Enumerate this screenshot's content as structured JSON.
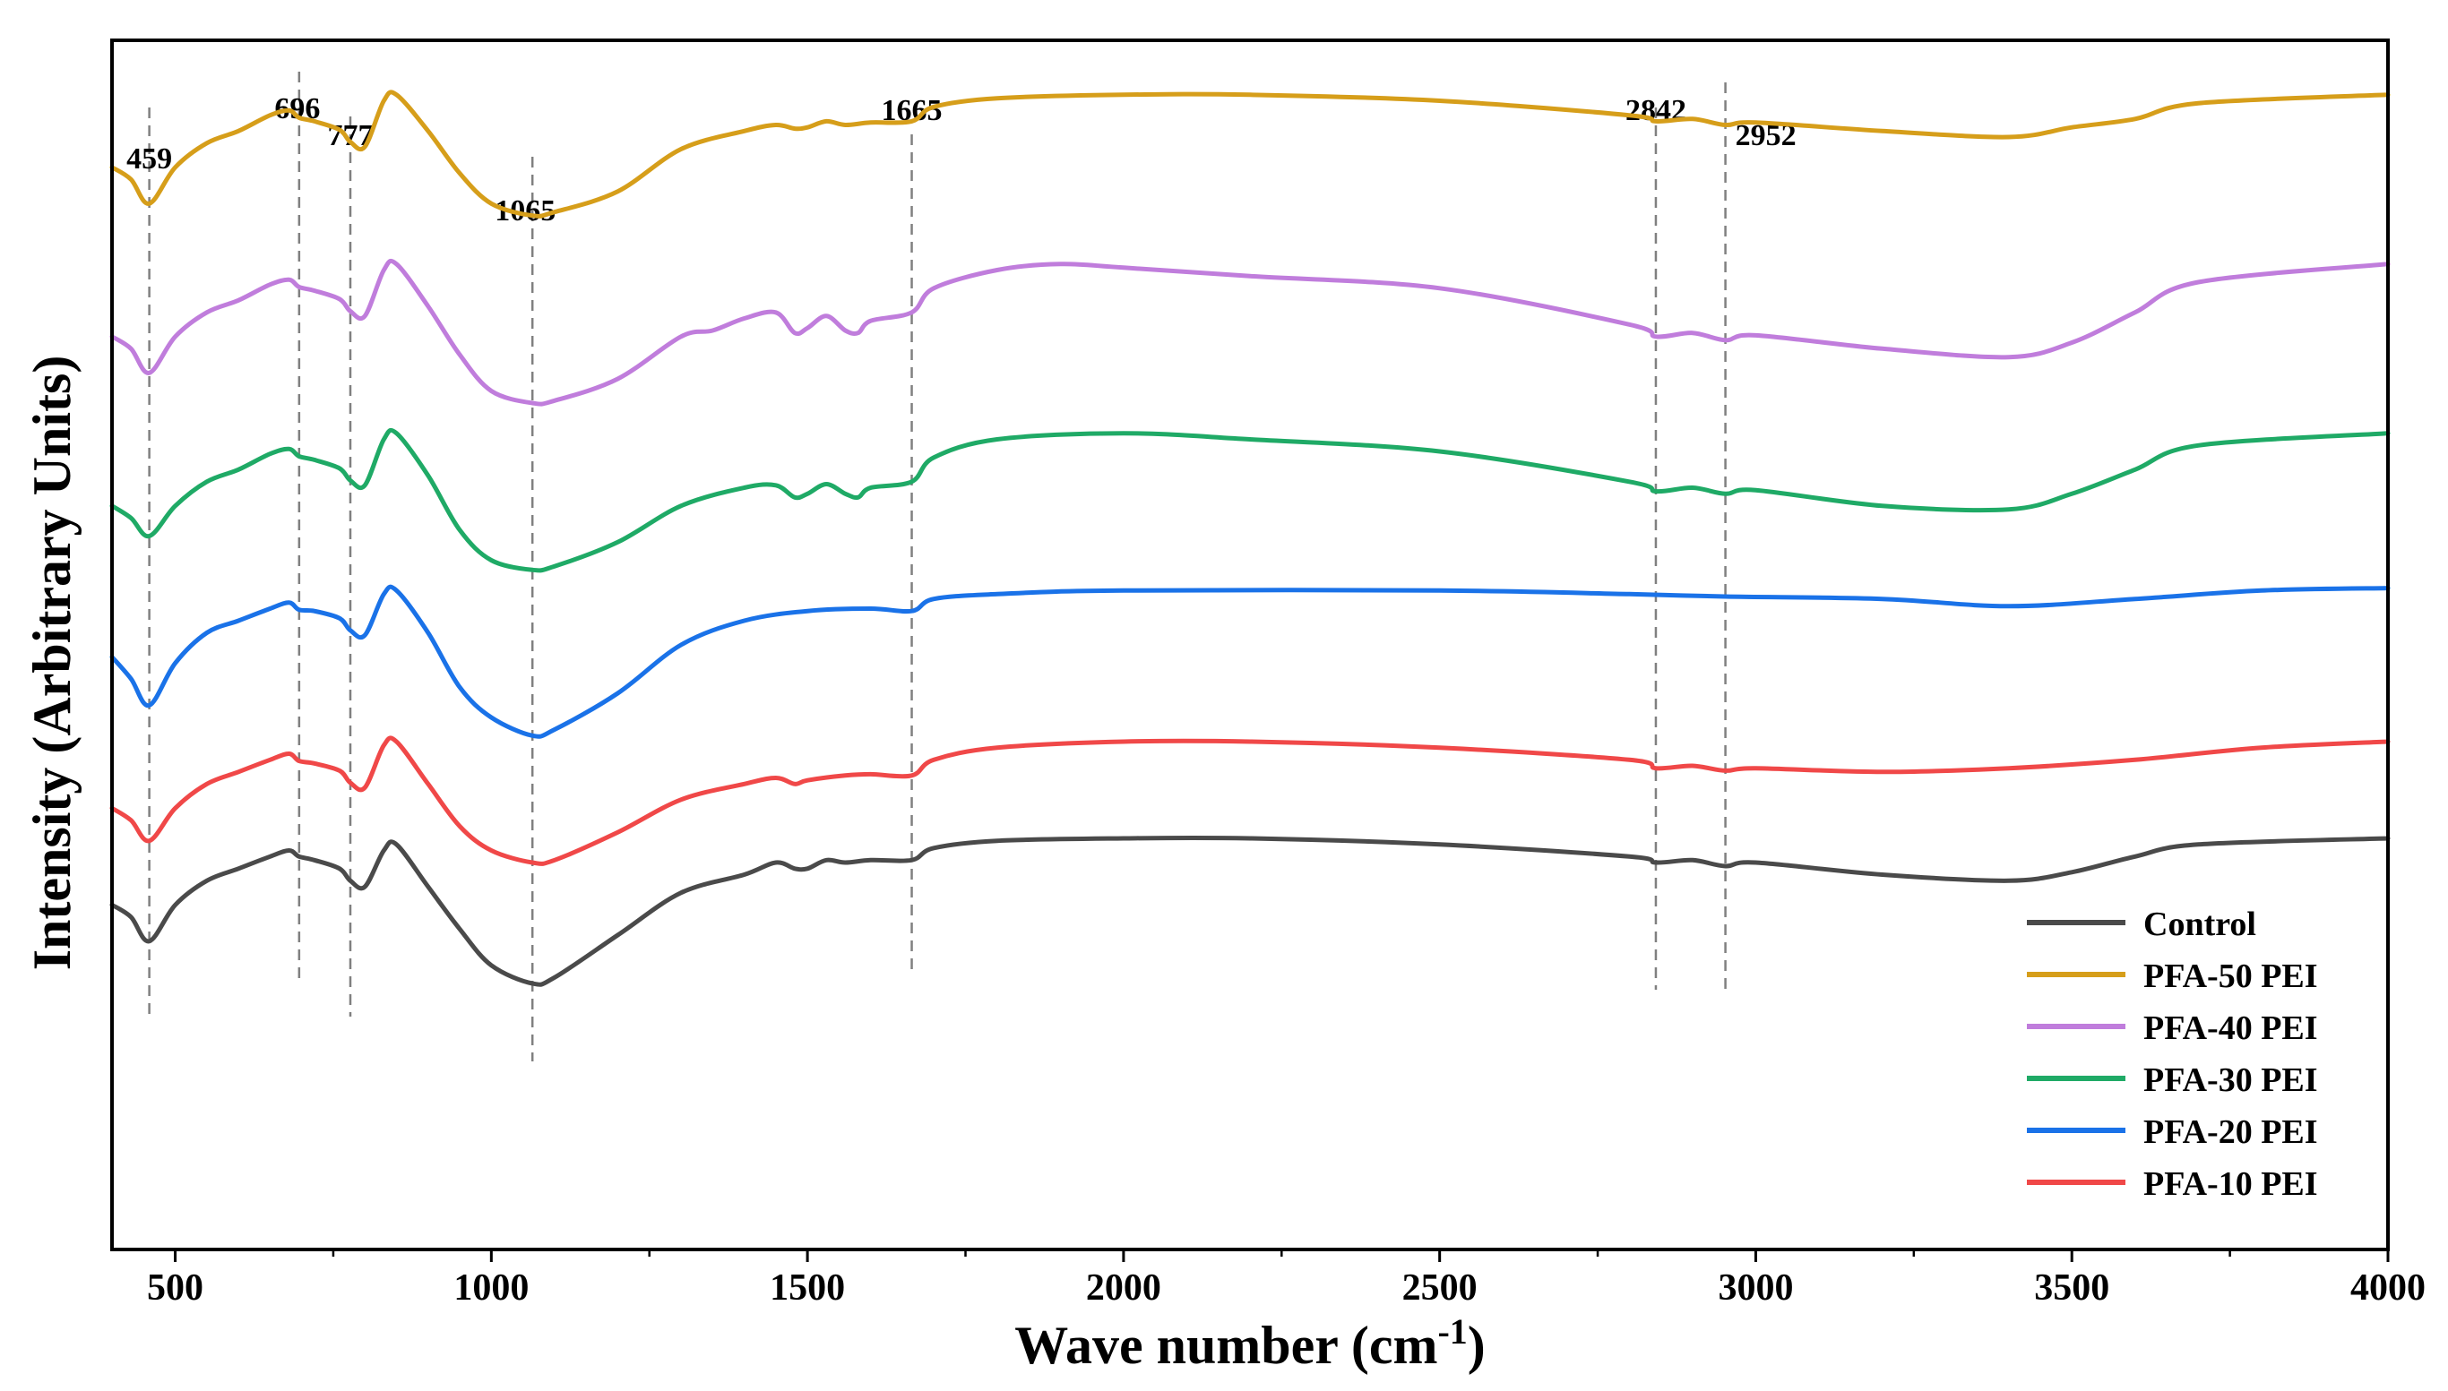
{
  "chart_data": {
    "type": "line",
    "xlabel": "Wave number (cm",
    "xlabel_sup": "-1",
    "xlabel_close": ")",
    "ylabel": "Intensity (Arbitrary Units)",
    "xlim": [
      400,
      4000
    ],
    "ylim": [
      0,
      10
    ],
    "x_ticks": [
      500,
      1000,
      1500,
      2000,
      2500,
      3000,
      3500,
      4000
    ],
    "y_ticks_shown": false,
    "grid": false,
    "legend_position": "bottom-right",
    "peaks": [
      {
        "x": 459,
        "label": "459"
      },
      {
        "x": 696,
        "label": "696"
      },
      {
        "x": 777,
        "label": "777"
      },
      {
        "x": 1065,
        "label": "1065"
      },
      {
        "x": 1665,
        "label": "1665"
      },
      {
        "x": 2842,
        "label": "2842"
      },
      {
        "x": 2952,
        "label": "2952"
      }
    ],
    "series": [
      {
        "name": "Control",
        "color": "#4a4a4a",
        "points": [
          [
            400,
            2.85
          ],
          [
            430,
            2.75
          ],
          [
            459,
            2.55
          ],
          [
            500,
            2.85
          ],
          [
            550,
            3.05
          ],
          [
            600,
            3.15
          ],
          [
            650,
            3.25
          ],
          [
            680,
            3.3
          ],
          [
            696,
            3.25
          ],
          [
            720,
            3.22
          ],
          [
            760,
            3.15
          ],
          [
            777,
            3.05
          ],
          [
            800,
            3.0
          ],
          [
            830,
            3.3
          ],
          [
            850,
            3.35
          ],
          [
            900,
            3.0
          ],
          [
            950,
            2.65
          ],
          [
            1000,
            2.35
          ],
          [
            1065,
            2.2
          ],
          [
            1100,
            2.25
          ],
          [
            1200,
            2.6
          ],
          [
            1300,
            2.95
          ],
          [
            1400,
            3.1
          ],
          [
            1450,
            3.2
          ],
          [
            1480,
            3.15
          ],
          [
            1500,
            3.15
          ],
          [
            1530,
            3.22
          ],
          [
            1560,
            3.2
          ],
          [
            1600,
            3.22
          ],
          [
            1665,
            3.22
          ],
          [
            1700,
            3.32
          ],
          [
            1800,
            3.38
          ],
          [
            2000,
            3.4
          ],
          [
            2200,
            3.4
          ],
          [
            2500,
            3.35
          ],
          [
            2800,
            3.25
          ],
          [
            2842,
            3.2
          ],
          [
            2900,
            3.22
          ],
          [
            2952,
            3.17
          ],
          [
            3000,
            3.2
          ],
          [
            3200,
            3.1
          ],
          [
            3400,
            3.05
          ],
          [
            3500,
            3.12
          ],
          [
            3600,
            3.25
          ],
          [
            3700,
            3.35
          ],
          [
            4000,
            3.4
          ]
        ]
      },
      {
        "name": "PFA-50 PEI",
        "color": "#d69e1a",
        "points": [
          [
            400,
            8.95
          ],
          [
            430,
            8.85
          ],
          [
            459,
            8.65
          ],
          [
            500,
            8.95
          ],
          [
            550,
            9.15
          ],
          [
            600,
            9.25
          ],
          [
            650,
            9.38
          ],
          [
            680,
            9.42
          ],
          [
            696,
            9.36
          ],
          [
            720,
            9.33
          ],
          [
            760,
            9.26
          ],
          [
            777,
            9.16
          ],
          [
            800,
            9.12
          ],
          [
            830,
            9.5
          ],
          [
            850,
            9.55
          ],
          [
            900,
            9.25
          ],
          [
            950,
            8.9
          ],
          [
            1000,
            8.65
          ],
          [
            1065,
            8.55
          ],
          [
            1100,
            8.58
          ],
          [
            1200,
            8.75
          ],
          [
            1300,
            9.1
          ],
          [
            1400,
            9.25
          ],
          [
            1450,
            9.3
          ],
          [
            1480,
            9.27
          ],
          [
            1500,
            9.28
          ],
          [
            1530,
            9.33
          ],
          [
            1560,
            9.3
          ],
          [
            1600,
            9.32
          ],
          [
            1665,
            9.33
          ],
          [
            1700,
            9.45
          ],
          [
            1800,
            9.52
          ],
          [
            2000,
            9.55
          ],
          [
            2200,
            9.55
          ],
          [
            2500,
            9.5
          ],
          [
            2800,
            9.38
          ],
          [
            2842,
            9.33
          ],
          [
            2900,
            9.35
          ],
          [
            2952,
            9.3
          ],
          [
            3000,
            9.32
          ],
          [
            3200,
            9.25
          ],
          [
            3400,
            9.2
          ],
          [
            3500,
            9.28
          ],
          [
            3600,
            9.35
          ],
          [
            3700,
            9.48
          ],
          [
            4000,
            9.55
          ]
        ]
      },
      {
        "name": "PFA-40 PEI",
        "color": "#c07ddc",
        "points": [
          [
            400,
            7.55
          ],
          [
            430,
            7.45
          ],
          [
            459,
            7.25
          ],
          [
            500,
            7.55
          ],
          [
            550,
            7.75
          ],
          [
            600,
            7.85
          ],
          [
            650,
            7.98
          ],
          [
            680,
            8.02
          ],
          [
            696,
            7.96
          ],
          [
            720,
            7.93
          ],
          [
            760,
            7.86
          ],
          [
            777,
            7.76
          ],
          [
            800,
            7.72
          ],
          [
            830,
            8.1
          ],
          [
            850,
            8.15
          ],
          [
            900,
            7.8
          ],
          [
            950,
            7.4
          ],
          [
            1000,
            7.1
          ],
          [
            1065,
            7.0
          ],
          [
            1100,
            7.02
          ],
          [
            1200,
            7.2
          ],
          [
            1300,
            7.55
          ],
          [
            1350,
            7.6
          ],
          [
            1400,
            7.7
          ],
          [
            1450,
            7.75
          ],
          [
            1480,
            7.58
          ],
          [
            1500,
            7.62
          ],
          [
            1530,
            7.72
          ],
          [
            1560,
            7.6
          ],
          [
            1580,
            7.58
          ],
          [
            1600,
            7.68
          ],
          [
            1665,
            7.75
          ],
          [
            1700,
            7.95
          ],
          [
            1800,
            8.1
          ],
          [
            1900,
            8.15
          ],
          [
            2000,
            8.12
          ],
          [
            2200,
            8.05
          ],
          [
            2500,
            7.95
          ],
          [
            2800,
            7.65
          ],
          [
            2842,
            7.55
          ],
          [
            2900,
            7.58
          ],
          [
            2952,
            7.52
          ],
          [
            3000,
            7.56
          ],
          [
            3200,
            7.45
          ],
          [
            3400,
            7.38
          ],
          [
            3500,
            7.5
          ],
          [
            3600,
            7.75
          ],
          [
            3700,
            8.0
          ],
          [
            4000,
            8.15
          ]
        ]
      },
      {
        "name": "PFA-30 PEI",
        "color": "#1faa66",
        "points": [
          [
            400,
            6.15
          ],
          [
            430,
            6.05
          ],
          [
            459,
            5.9
          ],
          [
            500,
            6.15
          ],
          [
            550,
            6.35
          ],
          [
            600,
            6.45
          ],
          [
            650,
            6.58
          ],
          [
            680,
            6.62
          ],
          [
            696,
            6.56
          ],
          [
            720,
            6.53
          ],
          [
            760,
            6.46
          ],
          [
            777,
            6.36
          ],
          [
            800,
            6.32
          ],
          [
            830,
            6.7
          ],
          [
            850,
            6.75
          ],
          [
            900,
            6.4
          ],
          [
            950,
            5.95
          ],
          [
            1000,
            5.7
          ],
          [
            1065,
            5.62
          ],
          [
            1100,
            5.65
          ],
          [
            1200,
            5.85
          ],
          [
            1300,
            6.15
          ],
          [
            1400,
            6.3
          ],
          [
            1450,
            6.32
          ],
          [
            1480,
            6.22
          ],
          [
            1500,
            6.25
          ],
          [
            1530,
            6.33
          ],
          [
            1560,
            6.25
          ],
          [
            1580,
            6.22
          ],
          [
            1600,
            6.3
          ],
          [
            1665,
            6.35
          ],
          [
            1700,
            6.55
          ],
          [
            1800,
            6.7
          ],
          [
            2000,
            6.75
          ],
          [
            2200,
            6.7
          ],
          [
            2500,
            6.6
          ],
          [
            2800,
            6.35
          ],
          [
            2842,
            6.27
          ],
          [
            2900,
            6.3
          ],
          [
            2952,
            6.25
          ],
          [
            3000,
            6.28
          ],
          [
            3200,
            6.15
          ],
          [
            3400,
            6.12
          ],
          [
            3500,
            6.25
          ],
          [
            3600,
            6.45
          ],
          [
            3700,
            6.65
          ],
          [
            4000,
            6.75
          ]
        ]
      },
      {
        "name": "PFA-20 PEI",
        "color": "#1a72e8",
        "points": [
          [
            400,
            4.9
          ],
          [
            430,
            4.72
          ],
          [
            459,
            4.5
          ],
          [
            500,
            4.85
          ],
          [
            550,
            5.1
          ],
          [
            600,
            5.2
          ],
          [
            650,
            5.3
          ],
          [
            680,
            5.35
          ],
          [
            696,
            5.29
          ],
          [
            720,
            5.28
          ],
          [
            760,
            5.22
          ],
          [
            777,
            5.12
          ],
          [
            800,
            5.08
          ],
          [
            830,
            5.42
          ],
          [
            850,
            5.45
          ],
          [
            900,
            5.1
          ],
          [
            950,
            4.65
          ],
          [
            1000,
            4.4
          ],
          [
            1065,
            4.25
          ],
          [
            1100,
            4.3
          ],
          [
            1200,
            4.6
          ],
          [
            1300,
            5.0
          ],
          [
            1400,
            5.2
          ],
          [
            1500,
            5.28
          ],
          [
            1600,
            5.3
          ],
          [
            1665,
            5.28
          ],
          [
            1700,
            5.38
          ],
          [
            1800,
            5.42
          ],
          [
            2000,
            5.45
          ],
          [
            2500,
            5.45
          ],
          [
            2800,
            5.42
          ],
          [
            2952,
            5.4
          ],
          [
            3200,
            5.38
          ],
          [
            3400,
            5.32
          ],
          [
            3600,
            5.38
          ],
          [
            3800,
            5.45
          ],
          [
            4000,
            5.47
          ]
        ]
      },
      {
        "name": "PFA-10 PEI",
        "color": "#f04848",
        "points": [
          [
            400,
            3.65
          ],
          [
            430,
            3.55
          ],
          [
            459,
            3.38
          ],
          [
            500,
            3.65
          ],
          [
            550,
            3.85
          ],
          [
            600,
            3.95
          ],
          [
            650,
            4.05
          ],
          [
            680,
            4.1
          ],
          [
            696,
            4.04
          ],
          [
            720,
            4.02
          ],
          [
            760,
            3.96
          ],
          [
            777,
            3.86
          ],
          [
            800,
            3.82
          ],
          [
            830,
            4.17
          ],
          [
            850,
            4.2
          ],
          [
            900,
            3.85
          ],
          [
            950,
            3.5
          ],
          [
            1000,
            3.3
          ],
          [
            1065,
            3.2
          ],
          [
            1100,
            3.22
          ],
          [
            1200,
            3.45
          ],
          [
            1300,
            3.72
          ],
          [
            1400,
            3.85
          ],
          [
            1450,
            3.9
          ],
          [
            1480,
            3.85
          ],
          [
            1500,
            3.88
          ],
          [
            1560,
            3.92
          ],
          [
            1600,
            3.93
          ],
          [
            1665,
            3.92
          ],
          [
            1700,
            4.05
          ],
          [
            1800,
            4.15
          ],
          [
            2000,
            4.2
          ],
          [
            2200,
            4.2
          ],
          [
            2500,
            4.15
          ],
          [
            2800,
            4.05
          ],
          [
            2842,
            3.98
          ],
          [
            2900,
            4.0
          ],
          [
            2952,
            3.96
          ],
          [
            3000,
            3.98
          ],
          [
            3200,
            3.95
          ],
          [
            3400,
            3.98
          ],
          [
            3600,
            4.05
          ],
          [
            3800,
            4.15
          ],
          [
            4000,
            4.2
          ]
        ]
      }
    ],
    "legend_order": [
      "Control",
      "PFA-50 PEI",
      "PFA-40 PEI",
      "PFA-30 PEI",
      "PFA-20 PEI",
      "PFA-10 PEI"
    ]
  }
}
